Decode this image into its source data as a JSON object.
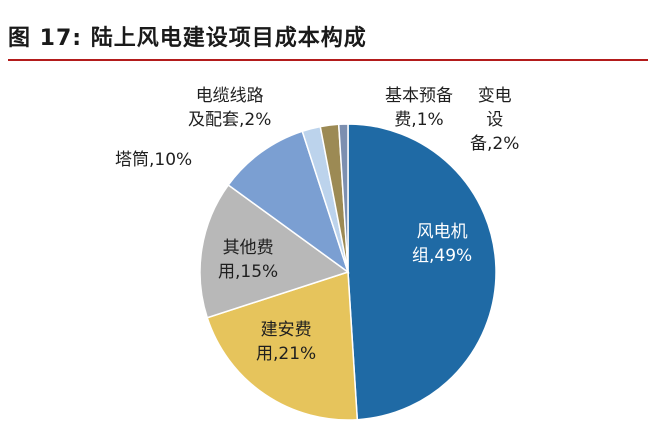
{
  "title": "图  17:  陆上风电建设项目成本构成",
  "colors": {
    "rule": "#b31b1b"
  },
  "chart_data": {
    "type": "pie",
    "unit": "%",
    "slices": [
      {
        "name": "风电机组",
        "value": 49,
        "color": "#1f6aa5",
        "label_lines": [
          "风电机",
          "组,49%"
        ]
      },
      {
        "name": "建安费用",
        "value": 21,
        "color": "#e6c45c",
        "label_lines": [
          "建安费",
          "用,21%"
        ]
      },
      {
        "name": "其他费用",
        "value": 15,
        "color": "#b8b8b8",
        "label_lines": [
          "其他费",
          "用,15%"
        ]
      },
      {
        "name": "塔筒",
        "value": 10,
        "color": "#7b9fd2",
        "label_lines": [
          "塔筒,10%"
        ]
      },
      {
        "name": "电缆线路及配套",
        "value": 2,
        "color": "#bcd3ec",
        "label_lines": [
          "电缆线路",
          "及配套,2%"
        ]
      },
      {
        "name": "变电设备",
        "value": 2,
        "color": "#9c8a54",
        "label_lines": [
          "变电",
          "设",
          "备,2%"
        ]
      },
      {
        "name": "基本预备费",
        "value": 1,
        "color": "#7c8fb0",
        "label_lines": [
          "基本预备",
          "费,1%"
        ]
      }
    ]
  }
}
